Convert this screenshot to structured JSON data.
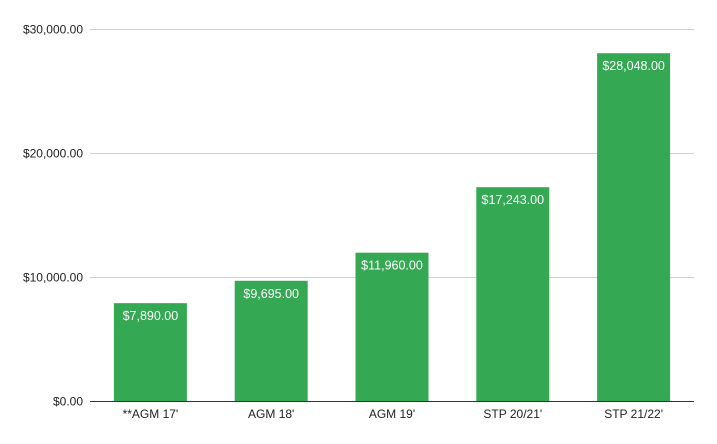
{
  "chart_data": {
    "type": "bar",
    "title": "",
    "xlabel": "",
    "ylabel": "",
    "categories": [
      "**AGM 17'",
      "AGM 18'",
      "AGM 19'",
      "STP 20/21'",
      "STP 21/22'"
    ],
    "values": [
      7890,
      9695,
      11960,
      17243,
      28048
    ],
    "data_labels": [
      "$7,890.00",
      "$9,695.00",
      "$11,960.00",
      "$17,243.00",
      "$28,048.00"
    ],
    "ylim": [
      0,
      30000
    ],
    "y_ticks": [
      0,
      10000,
      20000,
      30000
    ],
    "y_tick_labels": [
      "$0.00",
      "$10,000.00",
      "$20,000.00",
      "$30,000.00"
    ],
    "grid": true,
    "legend": "none",
    "colors": {
      "bar": "#34a853",
      "gridline": "#d0d0d0",
      "baseline": "#333333",
      "tick_text": "#222222",
      "data_label_text": "#ffffff"
    }
  }
}
